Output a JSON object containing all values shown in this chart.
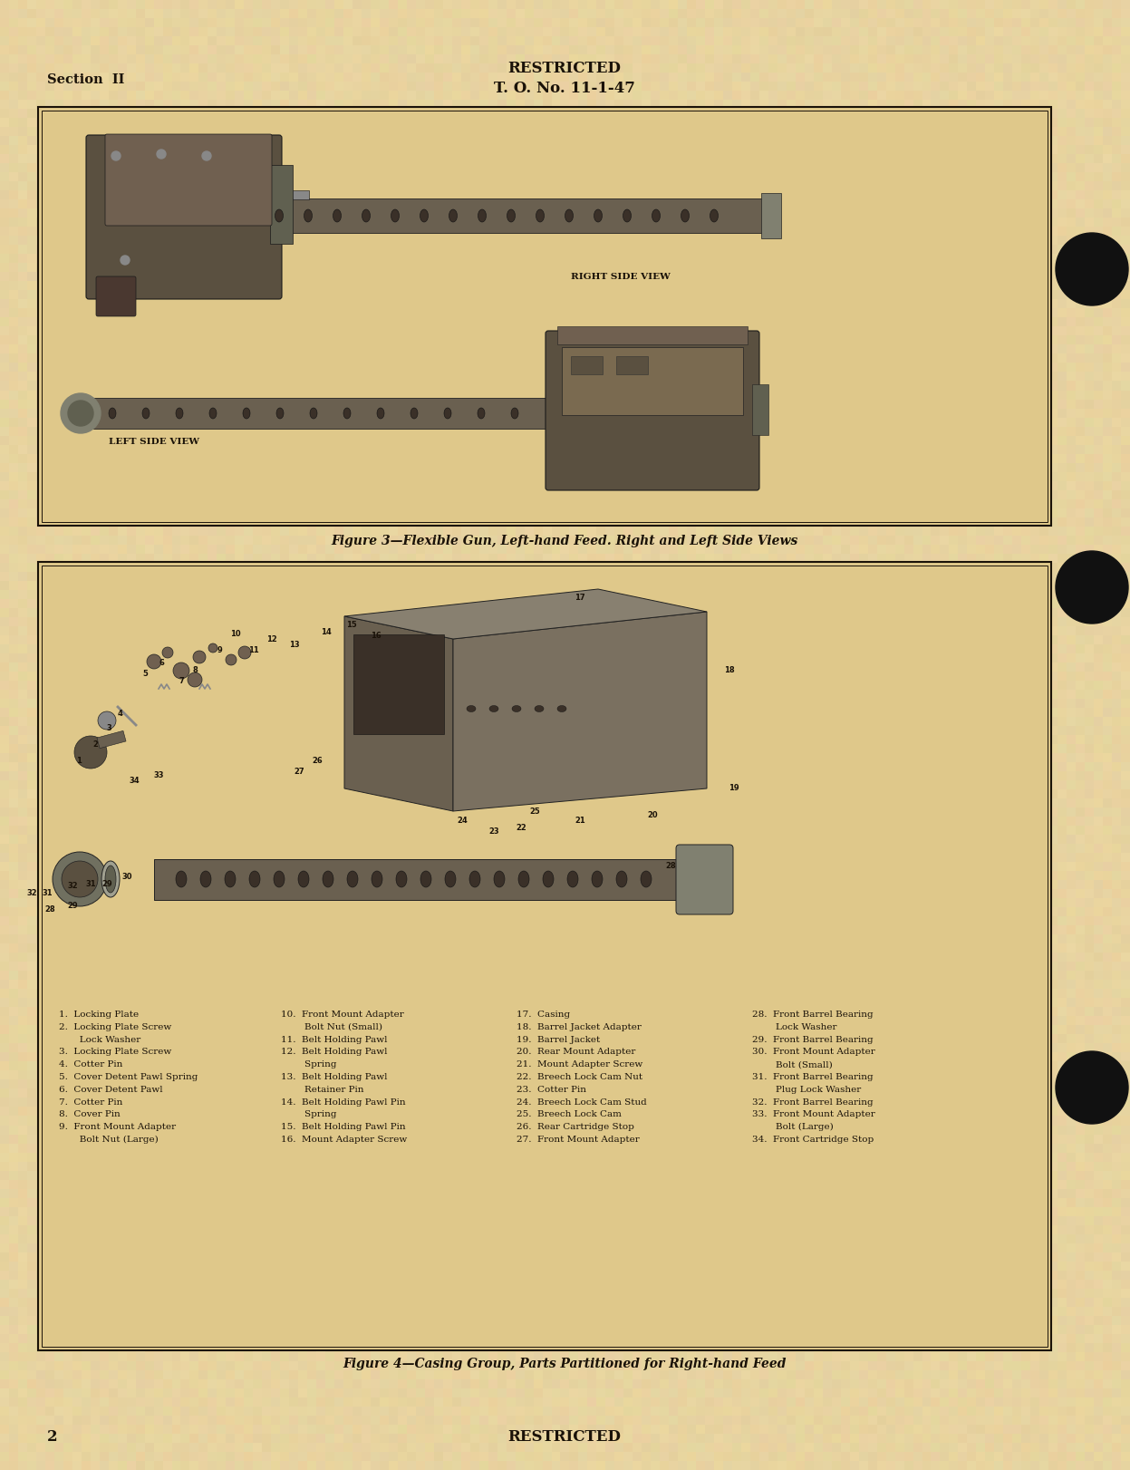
{
  "bg_color": "#e8d4a0",
  "paper_color": "#dfc98a",
  "text_color": "#1a1208",
  "border_color": "#1a1208",
  "header_section": "Section  II",
  "header_line1": "RESTRICTED",
  "header_line2": "T. O. No. 11-1-47",
  "fig1_caption": "Figure 3—Flexible Gun, Left-hand Feed. Right and Left Side Views",
  "fig1_label_right": "RIGHT SIDE VIEW",
  "fig1_label_left": "LEFT SIDE VIEW",
  "fig2_caption": "Figure 4—Casing Group, Parts Partitioned for Right-hand Feed",
  "footer_page": "2",
  "footer_center": "RESTRICTED",
  "col1_lines": [
    "1.  Locking Plate",
    "2.  Locking Plate Screw",
    "       Lock Washer",
    "3.  Locking Plate Screw",
    "4.  Cotter Pin",
    "5.  Cover Detent Pawl Spring",
    "6.  Cover Detent Pawl",
    "7.  Cotter Pin",
    "8.  Cover Pin",
    "9.  Front Mount Adapter",
    "       Bolt Nut (Large)"
  ],
  "col2_lines": [
    "10.  Front Mount Adapter",
    "        Bolt Nut (Small)",
    "11.  Belt Holding Pawl",
    "12.  Belt Holding Pawl",
    "        Spring",
    "13.  Belt Holding Pawl",
    "        Retainer Pin",
    "14.  Belt Holding Pawl Pin",
    "        Spring",
    "15.  Belt Holding Pawl Pin",
    "16.  Mount Adapter Screw"
  ],
  "col3_lines": [
    "17.  Casing",
    "18.  Barrel Jacket Adapter",
    "19.  Barrel Jacket",
    "20.  Rear Mount Adapter",
    "21.  Mount Adapter Screw",
    "22.  Breech Lock Cam Nut",
    "23.  Cotter Pin",
    "24.  Breech Lock Cam Stud",
    "25.  Breech Lock Cam",
    "26.  Rear Cartridge Stop",
    "27.  Front Mount Adapter"
  ],
  "col4_lines": [
    "28.  Front Barrel Bearing",
    "        Lock Washer",
    "29.  Front Barrel Bearing",
    "30.  Front Mount Adapter",
    "        Bolt (Small)",
    "31.  Front Barrel Bearing",
    "        Plug Lock Washer",
    "32.  Front Barrel Bearing",
    "33.  Front Mount Adapter",
    "        Bolt (Large)",
    "34.  Front Cartridge Stop"
  ]
}
